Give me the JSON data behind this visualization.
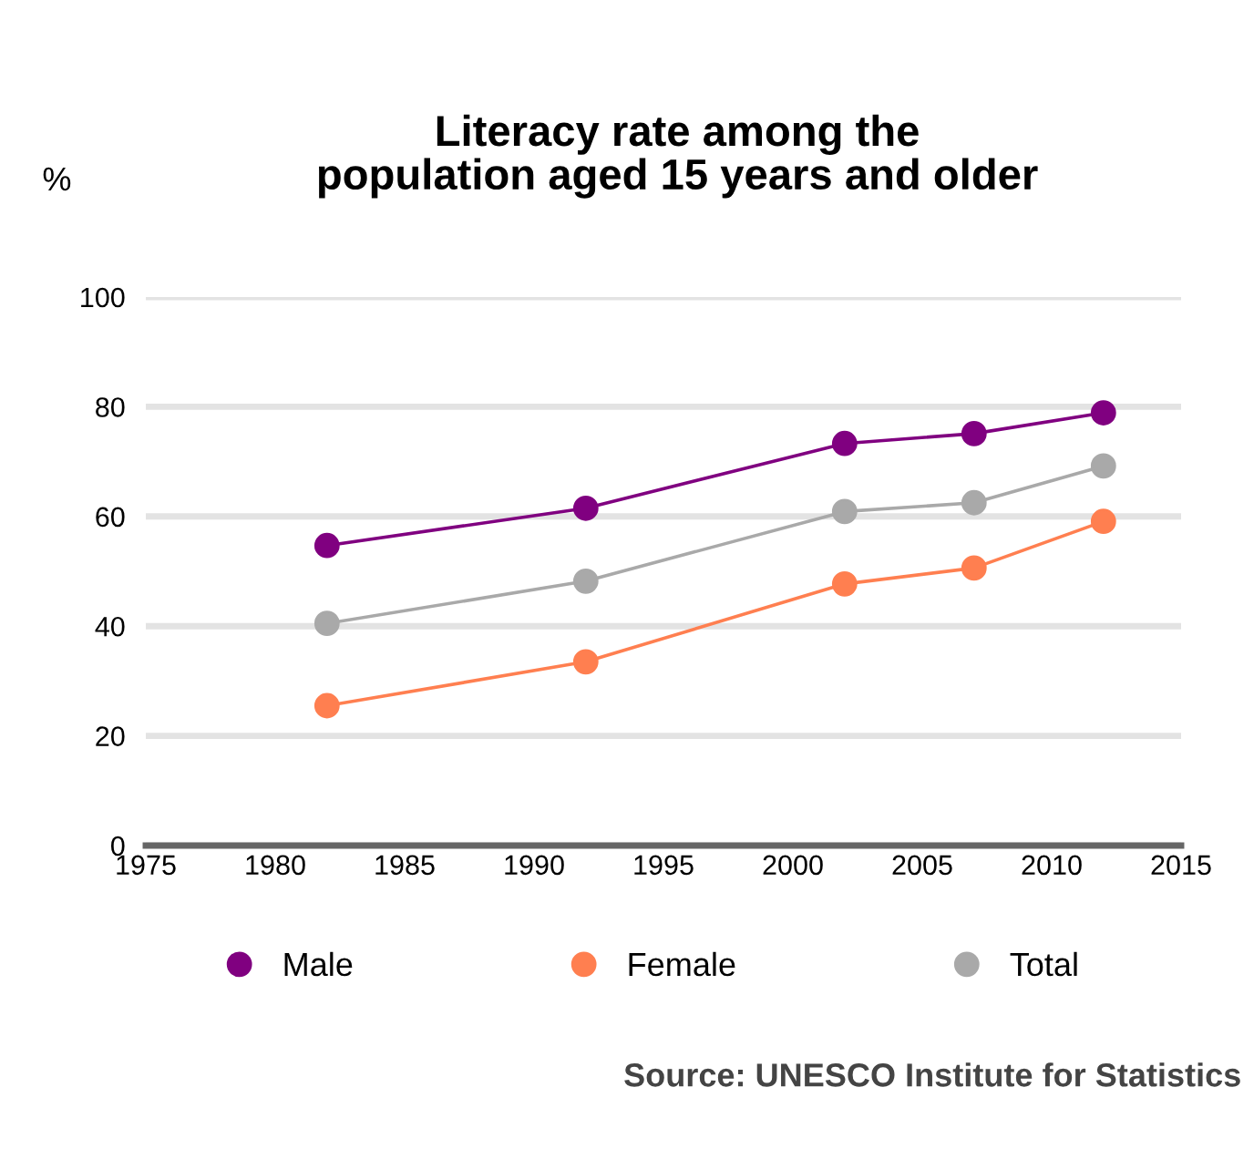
{
  "chart_data": {
    "type": "line",
    "title": "Literacy rate among the\npopulation aged 15 years and older",
    "ylabel": "%",
    "x": [
      1982,
      1992,
      2002,
      2007,
      2012
    ],
    "series": [
      {
        "name": "Male",
        "color": "#800080",
        "values": [
          54.7,
          61.5,
          73.3,
          75.1,
          78.9
        ]
      },
      {
        "name": "Female",
        "color": "#ff7f50",
        "values": [
          25.5,
          33.5,
          47.7,
          50.6,
          59.1
        ]
      },
      {
        "name": "Total",
        "color": "#a9a9a9",
        "values": [
          40.5,
          48.2,
          60.9,
          62.5,
          69.2
        ]
      }
    ],
    "xlim": [
      1975,
      2015
    ],
    "xticks": [
      1975,
      1980,
      1985,
      1990,
      1995,
      2000,
      2005,
      2010,
      2015
    ],
    "ylim": [
      0,
      100
    ],
    "yticks": [
      0,
      20,
      40,
      60,
      80,
      100
    ],
    "grid": "y",
    "legend": "bottom",
    "marker": "circle",
    "line_style": "solid",
    "annotations": [
      "Source: UNESCO Institute for Statistics"
    ]
  }
}
